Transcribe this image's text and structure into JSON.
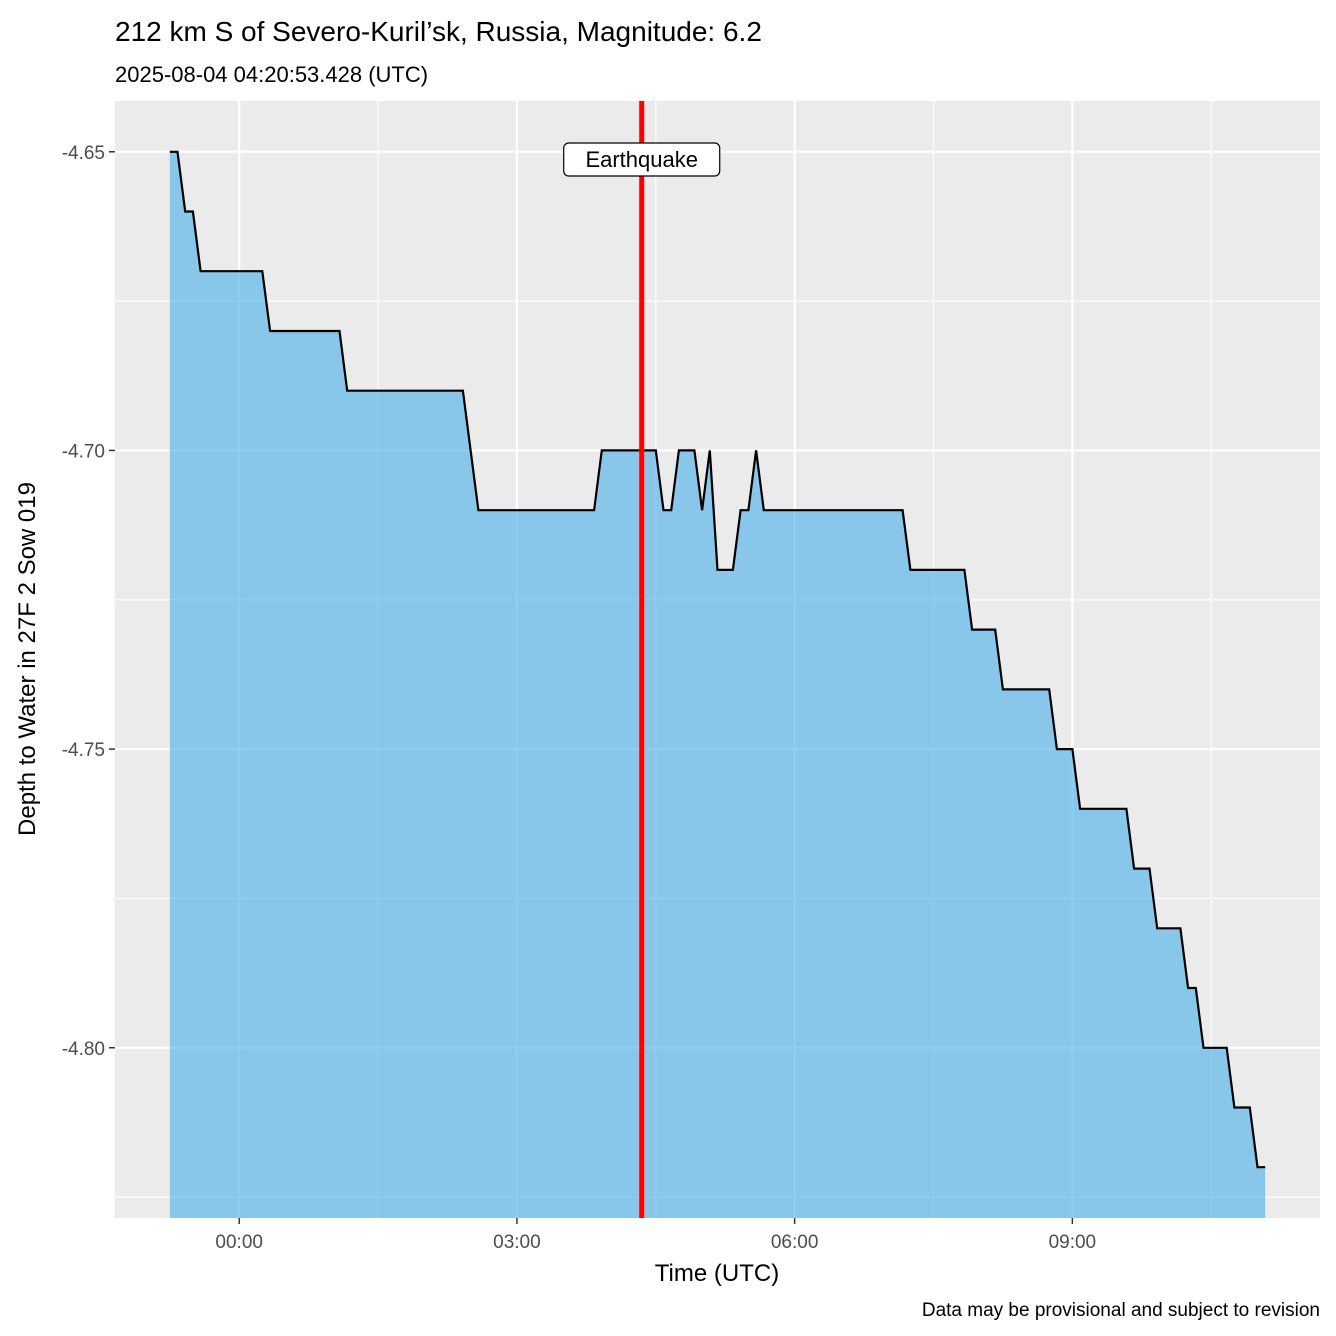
{
  "chart_data": {
    "type": "area",
    "title": "212 km S of Severo-Kuril’sk, Russia, Magnitude: 6.2",
    "subtitle": "2025-08-04 04:20:53.428 (UTC)",
    "xlabel": "Time (UTC)",
    "ylabel": "Depth to Water in 27F 2 Sow 019",
    "caption": "Data may be provisional and subject to revision",
    "x_ticks": [
      "00:00",
      "03:00",
      "06:00",
      "09:00"
    ],
    "y_ticks": [
      "-4.65",
      "-4.70",
      "-4.75",
      "-4.80"
    ],
    "xlim": [
      "2025-08-03 22:39:30",
      "2025-08-04 11:40:30"
    ],
    "ylim": [
      -4.8285,
      -4.6415
    ],
    "grid": true,
    "colors": {
      "fill": "#56B4E9",
      "line": "#000000",
      "event": "#FF0000",
      "panel": "#EBEBEB"
    },
    "event": {
      "label": "Earthquake",
      "time": "2025-08-04 04:20:53"
    },
    "series": [
      {
        "x": [
          "2025-08-03 23:15",
          "2025-08-03 23:20",
          "2025-08-03 23:25",
          "2025-08-03 23:30",
          "2025-08-03 23:35",
          "2025-08-04 00:15",
          "2025-08-04 00:20",
          "2025-08-04 01:05",
          "2025-08-04 01:10",
          "2025-08-04 02:25",
          "2025-08-04 02:30",
          "2025-08-04 02:35",
          "2025-08-04 03:50",
          "2025-08-04 03:55",
          "2025-08-04 04:30",
          "2025-08-04 04:35",
          "2025-08-04 04:40",
          "2025-08-04 04:45",
          "2025-08-04 04:55",
          "2025-08-04 05:00",
          "2025-08-04 05:05",
          "2025-08-04 05:10",
          "2025-08-04 05:20",
          "2025-08-04 05:25",
          "2025-08-04 05:30",
          "2025-08-04 05:35",
          "2025-08-04 05:40",
          "2025-08-04 07:10",
          "2025-08-04 07:15",
          "2025-08-04 07:50",
          "2025-08-04 07:55",
          "2025-08-04 08:10",
          "2025-08-04 08:15",
          "2025-08-04 08:45",
          "2025-08-04 08:50",
          "2025-08-04 09:00",
          "2025-08-04 09:05",
          "2025-08-04 09:35",
          "2025-08-04 09:40",
          "2025-08-04 09:50",
          "2025-08-04 09:55",
          "2025-08-04 10:10",
          "2025-08-04 10:15",
          "2025-08-04 10:20",
          "2025-08-04 10:25",
          "2025-08-04 10:40",
          "2025-08-04 10:45",
          "2025-08-04 10:55",
          "2025-08-04 11:00",
          "2025-08-04 11:05"
        ],
        "y": [
          -4.65,
          -4.65,
          -4.66,
          -4.66,
          -4.67,
          -4.67,
          -4.68,
          -4.68,
          -4.69,
          -4.69,
          -4.7,
          -4.71,
          -4.71,
          -4.7,
          -4.7,
          -4.71,
          -4.71,
          -4.7,
          -4.7,
          -4.71,
          -4.7,
          -4.72,
          -4.72,
          -4.71,
          -4.71,
          -4.7,
          -4.71,
          -4.71,
          -4.72,
          -4.72,
          -4.73,
          -4.73,
          -4.74,
          -4.74,
          -4.75,
          -4.75,
          -4.76,
          -4.76,
          -4.77,
          -4.77,
          -4.78,
          -4.78,
          -4.79,
          -4.79,
          -4.8,
          -4.8,
          -4.81,
          -4.81,
          -4.82,
          -4.82
        ]
      }
    ]
  }
}
